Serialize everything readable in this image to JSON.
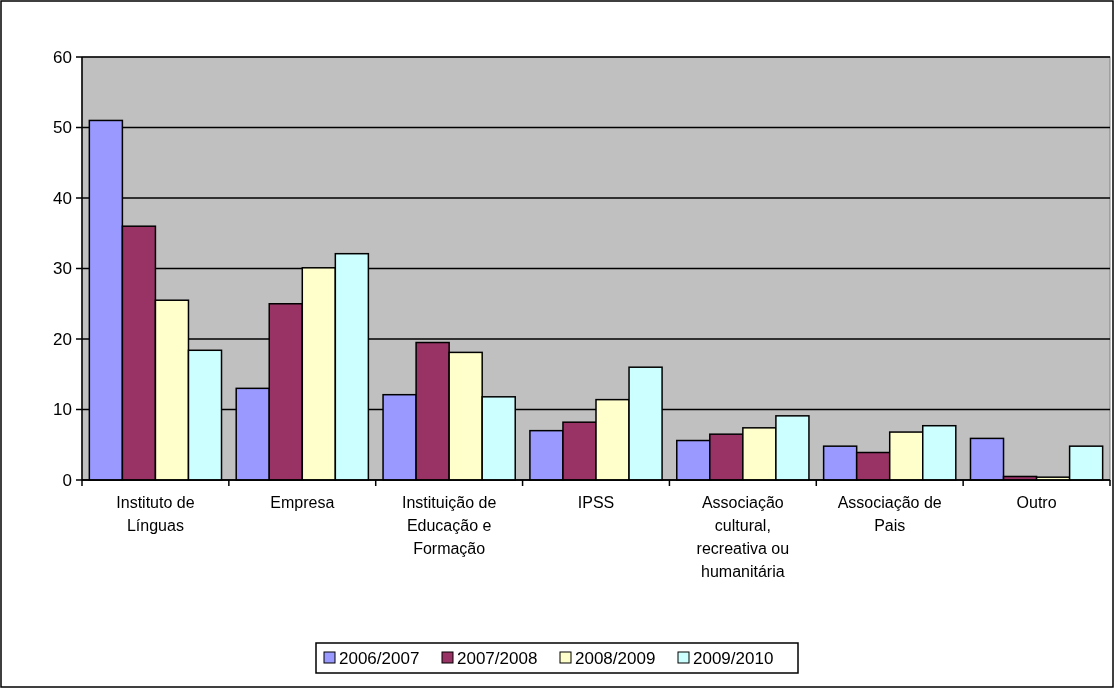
{
  "chart_data": {
    "type": "bar",
    "categories": [
      "Instituto de Línguas",
      "Empresa",
      "Instituição de Educação e Formação",
      "IPSS",
      "Associação cultural, recreativa ou humanitária",
      "Associação de Pais",
      "Outro"
    ],
    "series": [
      {
        "name": "2006/2007",
        "color": "#9999ff",
        "values": [
          51,
          13,
          12.1,
          7,
          5.6,
          4.8,
          5.9
        ]
      },
      {
        "name": "2007/2008",
        "color": "#993366",
        "values": [
          36,
          25,
          19.5,
          8.2,
          6.5,
          3.9,
          0.5
        ]
      },
      {
        "name": "2008/2009",
        "color": "#ffffcc",
        "values": [
          25.5,
          30.1,
          18.1,
          11.4,
          7.4,
          6.8,
          0.4
        ]
      },
      {
        "name": "2009/2010",
        "color": "#ccffff",
        "values": [
          18.4,
          32.1,
          11.8,
          16,
          9.1,
          7.7,
          4.8
        ]
      }
    ],
    "ylim": [
      0,
      60
    ],
    "yticks": [
      0,
      10,
      20,
      30,
      40,
      50,
      60
    ],
    "grid": "y",
    "legend": "bottom"
  }
}
